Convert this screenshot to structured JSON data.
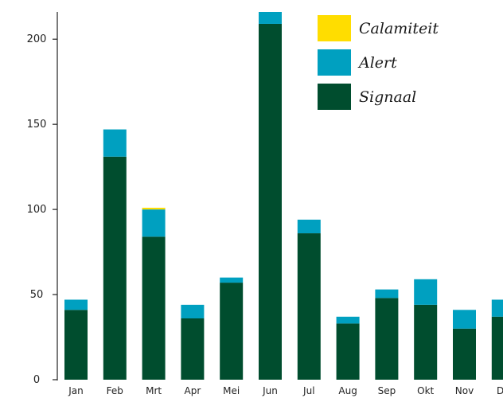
{
  "chart_data": {
    "type": "bar",
    "stacked": true,
    "categories": [
      "Jan",
      "Feb",
      "Mrt",
      "Apr",
      "Mei",
      "Jun",
      "Jul",
      "Aug",
      "Sep",
      "Okt",
      "Nov",
      "De"
    ],
    "series": [
      {
        "name": "Signaal",
        "color": "#004d2e",
        "values": [
          41,
          131,
          84,
          36,
          57,
          209,
          86,
          33,
          48,
          44,
          30,
          37
        ]
      },
      {
        "name": "Alert",
        "color": "#00a0c0",
        "values": [
          6,
          16,
          16,
          8,
          3,
          7,
          8,
          4,
          5,
          15,
          11,
          10
        ]
      },
      {
        "name": "Calamiteit",
        "color": "#ffdd00",
        "values": [
          0,
          0,
          1,
          0,
          0,
          0,
          0,
          0,
          0,
          0,
          0,
          0
        ]
      }
    ],
    "legend_order": [
      "Calamiteit",
      "Alert",
      "Signaal"
    ],
    "yticks": [
      0,
      50,
      100,
      150,
      200
    ],
    "ylim": [
      0,
      216
    ],
    "grid": false,
    "legend_position": "top-right",
    "title": "",
    "xlabel": "",
    "ylabel": ""
  }
}
